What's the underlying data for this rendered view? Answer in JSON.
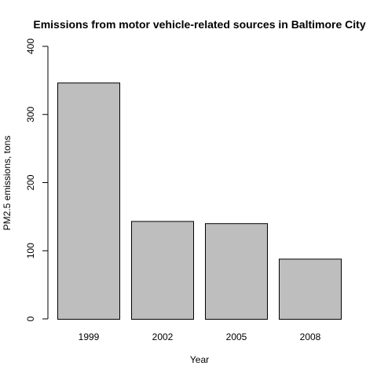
{
  "chart_data": {
    "type": "bar",
    "title": "Emissions from motor vehicle-related sources in Baltimore City",
    "xlabel": "Year",
    "ylabel": "PM2.5 emissions, tons",
    "categories": [
      "1999",
      "2002",
      "2005",
      "2008"
    ],
    "values": [
      346.8,
      143.6,
      140.4,
      88.3
    ],
    "ylim": [
      0,
      400
    ],
    "yticks": [
      0,
      100,
      200,
      300,
      400
    ],
    "grid": false,
    "legend": "none",
    "bar_fill": "#bebebe",
    "bar_stroke": "#000000"
  }
}
